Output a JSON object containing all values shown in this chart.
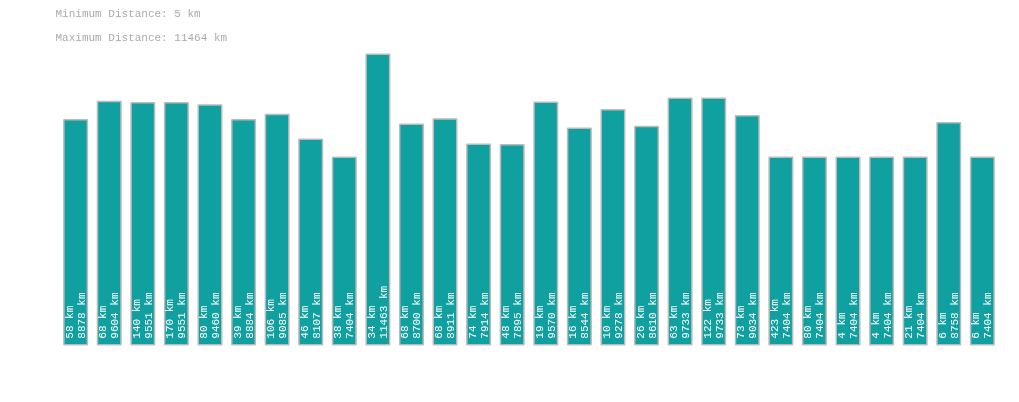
{
  "chart_data": {
    "type": "bar",
    "title": "Minimum Distance:     5 km",
    "subtitle": "Maximum Distance: 11464 km",
    "categories": [
      null,
      null,
      null,
      null,
      null,
      null,
      null,
      null,
      null,
      null,
      null,
      null,
      null,
      null,
      null,
      null,
      null,
      null,
      null,
      null,
      null,
      null,
      null,
      null,
      null,
      null,
      null,
      null
    ],
    "values": [
      8878,
      9604,
      9551,
      9551,
      9460,
      8884,
      9085,
      8107,
      7404,
      11463,
      8700,
      8911,
      7914,
      7895,
      9570,
      8544,
      9278,
      8610,
      9733,
      9733,
      9034,
      7404,
      7404,
      7404,
      7404,
      7404,
      8758,
      7404
    ],
    "value_labels": [
      "58 km\n8878 km",
      "68 km\n9604 km",
      "140 km\n9551 km",
      "170 km\n9551 km",
      "80 km\n9460 km",
      "39 km\n8884 km",
      "106 km\n9085 km",
      "46 km\n8107 km",
      "38 km\n7404 km",
      "34 km\n11463 km",
      "68 km\n8700 km",
      "68 km\n8911 km",
      "74 km\n7914 km",
      "48 km\n7895 km",
      "19 km\n9570 km",
      "16 km\n8544 km",
      "10 km\n9278 km",
      "26 km\n8610 km",
      "63 km\n9733 km",
      "122 km\n9733 km",
      "73 km\n9034 km",
      "423 km\n7404 km",
      "80 km\n7404 km",
      "4 km\n7404 km",
      "4 km\n7404 km",
      "21 km\n7404 km",
      "6 km\n8758 km",
      "6 km\n7404 km"
    ],
    "color": "#11a0a0",
    "tick_labels": false,
    "grid": false
  }
}
